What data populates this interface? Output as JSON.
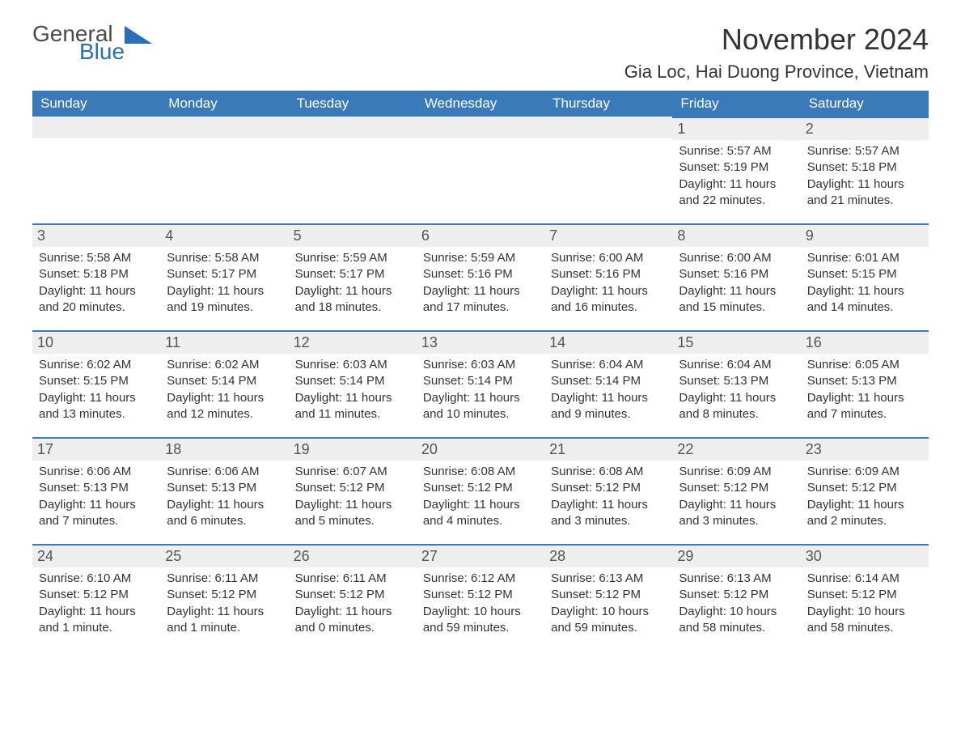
{
  "logo": {
    "word1": "General",
    "word2": "Blue",
    "triangle_color": "#2a6fb5",
    "word1_color": "#4a4a4a",
    "word2_color": "#2a6fb5"
  },
  "title": "November 2024",
  "location": "Gia Loc, Hai Duong Province, Vietnam",
  "colors": {
    "header_bg": "#3a7ab8",
    "header_text": "#ffffff",
    "daynum_bg": "#eeeeee",
    "daynum_border": "#3a7ab8",
    "body_text": "#333333",
    "background": "#ffffff"
  },
  "weekdays": [
    "Sunday",
    "Monday",
    "Tuesday",
    "Wednesday",
    "Thursday",
    "Friday",
    "Saturday"
  ],
  "weeks": [
    [
      null,
      null,
      null,
      null,
      null,
      {
        "day": "1",
        "sunrise": "Sunrise: 5:57 AM",
        "sunset": "Sunset: 5:19 PM",
        "daylight1": "Daylight: 11 hours",
        "daylight2": "and 22 minutes."
      },
      {
        "day": "2",
        "sunrise": "Sunrise: 5:57 AM",
        "sunset": "Sunset: 5:18 PM",
        "daylight1": "Daylight: 11 hours",
        "daylight2": "and 21 minutes."
      }
    ],
    [
      {
        "day": "3",
        "sunrise": "Sunrise: 5:58 AM",
        "sunset": "Sunset: 5:18 PM",
        "daylight1": "Daylight: 11 hours",
        "daylight2": "and 20 minutes."
      },
      {
        "day": "4",
        "sunrise": "Sunrise: 5:58 AM",
        "sunset": "Sunset: 5:17 PM",
        "daylight1": "Daylight: 11 hours",
        "daylight2": "and 19 minutes."
      },
      {
        "day": "5",
        "sunrise": "Sunrise: 5:59 AM",
        "sunset": "Sunset: 5:17 PM",
        "daylight1": "Daylight: 11 hours",
        "daylight2": "and 18 minutes."
      },
      {
        "day": "6",
        "sunrise": "Sunrise: 5:59 AM",
        "sunset": "Sunset: 5:16 PM",
        "daylight1": "Daylight: 11 hours",
        "daylight2": "and 17 minutes."
      },
      {
        "day": "7",
        "sunrise": "Sunrise: 6:00 AM",
        "sunset": "Sunset: 5:16 PM",
        "daylight1": "Daylight: 11 hours",
        "daylight2": "and 16 minutes."
      },
      {
        "day": "8",
        "sunrise": "Sunrise: 6:00 AM",
        "sunset": "Sunset: 5:16 PM",
        "daylight1": "Daylight: 11 hours",
        "daylight2": "and 15 minutes."
      },
      {
        "day": "9",
        "sunrise": "Sunrise: 6:01 AM",
        "sunset": "Sunset: 5:15 PM",
        "daylight1": "Daylight: 11 hours",
        "daylight2": "and 14 minutes."
      }
    ],
    [
      {
        "day": "10",
        "sunrise": "Sunrise: 6:02 AM",
        "sunset": "Sunset: 5:15 PM",
        "daylight1": "Daylight: 11 hours",
        "daylight2": "and 13 minutes."
      },
      {
        "day": "11",
        "sunrise": "Sunrise: 6:02 AM",
        "sunset": "Sunset: 5:14 PM",
        "daylight1": "Daylight: 11 hours",
        "daylight2": "and 12 minutes."
      },
      {
        "day": "12",
        "sunrise": "Sunrise: 6:03 AM",
        "sunset": "Sunset: 5:14 PM",
        "daylight1": "Daylight: 11 hours",
        "daylight2": "and 11 minutes."
      },
      {
        "day": "13",
        "sunrise": "Sunrise: 6:03 AM",
        "sunset": "Sunset: 5:14 PM",
        "daylight1": "Daylight: 11 hours",
        "daylight2": "and 10 minutes."
      },
      {
        "day": "14",
        "sunrise": "Sunrise: 6:04 AM",
        "sunset": "Sunset: 5:14 PM",
        "daylight1": "Daylight: 11 hours",
        "daylight2": "and 9 minutes."
      },
      {
        "day": "15",
        "sunrise": "Sunrise: 6:04 AM",
        "sunset": "Sunset: 5:13 PM",
        "daylight1": "Daylight: 11 hours",
        "daylight2": "and 8 minutes."
      },
      {
        "day": "16",
        "sunrise": "Sunrise: 6:05 AM",
        "sunset": "Sunset: 5:13 PM",
        "daylight1": "Daylight: 11 hours",
        "daylight2": "and 7 minutes."
      }
    ],
    [
      {
        "day": "17",
        "sunrise": "Sunrise: 6:06 AM",
        "sunset": "Sunset: 5:13 PM",
        "daylight1": "Daylight: 11 hours",
        "daylight2": "and 7 minutes."
      },
      {
        "day": "18",
        "sunrise": "Sunrise: 6:06 AM",
        "sunset": "Sunset: 5:13 PM",
        "daylight1": "Daylight: 11 hours",
        "daylight2": "and 6 minutes."
      },
      {
        "day": "19",
        "sunrise": "Sunrise: 6:07 AM",
        "sunset": "Sunset: 5:12 PM",
        "daylight1": "Daylight: 11 hours",
        "daylight2": "and 5 minutes."
      },
      {
        "day": "20",
        "sunrise": "Sunrise: 6:08 AM",
        "sunset": "Sunset: 5:12 PM",
        "daylight1": "Daylight: 11 hours",
        "daylight2": "and 4 minutes."
      },
      {
        "day": "21",
        "sunrise": "Sunrise: 6:08 AM",
        "sunset": "Sunset: 5:12 PM",
        "daylight1": "Daylight: 11 hours",
        "daylight2": "and 3 minutes."
      },
      {
        "day": "22",
        "sunrise": "Sunrise: 6:09 AM",
        "sunset": "Sunset: 5:12 PM",
        "daylight1": "Daylight: 11 hours",
        "daylight2": "and 3 minutes."
      },
      {
        "day": "23",
        "sunrise": "Sunrise: 6:09 AM",
        "sunset": "Sunset: 5:12 PM",
        "daylight1": "Daylight: 11 hours",
        "daylight2": "and 2 minutes."
      }
    ],
    [
      {
        "day": "24",
        "sunrise": "Sunrise: 6:10 AM",
        "sunset": "Sunset: 5:12 PM",
        "daylight1": "Daylight: 11 hours",
        "daylight2": "and 1 minute."
      },
      {
        "day": "25",
        "sunrise": "Sunrise: 6:11 AM",
        "sunset": "Sunset: 5:12 PM",
        "daylight1": "Daylight: 11 hours",
        "daylight2": "and 1 minute."
      },
      {
        "day": "26",
        "sunrise": "Sunrise: 6:11 AM",
        "sunset": "Sunset: 5:12 PM",
        "daylight1": "Daylight: 11 hours",
        "daylight2": "and 0 minutes."
      },
      {
        "day": "27",
        "sunrise": "Sunrise: 6:12 AM",
        "sunset": "Sunset: 5:12 PM",
        "daylight1": "Daylight: 10 hours",
        "daylight2": "and 59 minutes."
      },
      {
        "day": "28",
        "sunrise": "Sunrise: 6:13 AM",
        "sunset": "Sunset: 5:12 PM",
        "daylight1": "Daylight: 10 hours",
        "daylight2": "and 59 minutes."
      },
      {
        "day": "29",
        "sunrise": "Sunrise: 6:13 AM",
        "sunset": "Sunset: 5:12 PM",
        "daylight1": "Daylight: 10 hours",
        "daylight2": "and 58 minutes."
      },
      {
        "day": "30",
        "sunrise": "Sunrise: 6:14 AM",
        "sunset": "Sunset: 5:12 PM",
        "daylight1": "Daylight: 10 hours",
        "daylight2": "and 58 minutes."
      }
    ]
  ]
}
